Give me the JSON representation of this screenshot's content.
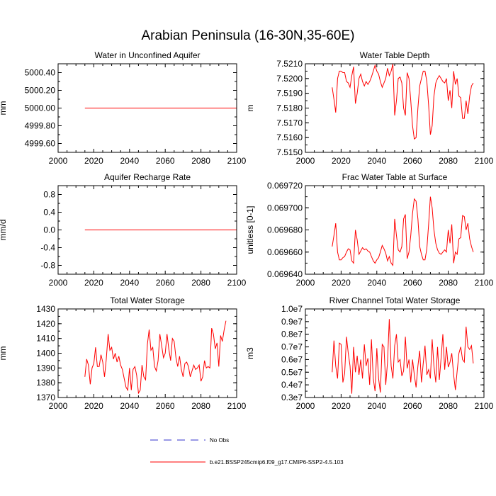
{
  "title": "Arabian Peninsula (16-30N,35-60E)",
  "colors": {
    "model": "#ff0000",
    "obs": "#3333cc",
    "axis": "#000000"
  },
  "legend": {
    "obs_label": "No Obs",
    "model_label": "b.e21.BSSP245cmip6.f09_g17.CMIP6-SSP2-4.5.103"
  },
  "chart_data": [
    {
      "type": "line",
      "title": "Water in Unconfined Aquifer",
      "ylabel": "mm",
      "xlim": [
        2000,
        2100
      ],
      "ylim": [
        4999.5,
        5000.5
      ],
      "xticks": [
        "2000",
        "2020",
        "2040",
        "2060",
        "2080",
        "2100"
      ],
      "yticks": [
        {
          "v": 4999.6,
          "label": "4999.60"
        },
        {
          "v": 4999.8,
          "label": "4999.80"
        },
        {
          "v": 5000.0,
          "label": "5000.00"
        },
        {
          "v": 5000.2,
          "label": "5000.20"
        },
        {
          "v": 5000.4,
          "label": "5000.40"
        }
      ],
      "series": [
        {
          "name": "b.e21.BSSP245cmip6.f09_g17.CMIP6-SSP2-4.5.103",
          "x": [
            2015,
            2100
          ],
          "values": [
            5000.0,
            5000.0
          ]
        }
      ]
    },
    {
      "type": "line",
      "title": "Water Table Depth",
      "ylabel": "m",
      "xlim": [
        2000,
        2100
      ],
      "ylim": [
        7.515,
        7.521
      ],
      "xticks": [
        "2000",
        "2020",
        "2040",
        "2060",
        "2080",
        "2100"
      ],
      "yticks": [
        {
          "v": 7.515,
          "label": "7.5150"
        },
        {
          "v": 7.516,
          "label": "7.5160"
        },
        {
          "v": 7.517,
          "label": "7.5170"
        },
        {
          "v": 7.518,
          "label": "7.5180"
        },
        {
          "v": 7.519,
          "label": "7.5190"
        },
        {
          "v": 7.52,
          "label": "7.5200"
        },
        {
          "v": 7.521,
          "label": "7.5210"
        }
      ],
      "series": [
        {
          "name": "b.e21.BSSP245cmip6.f09_g17.CMIP6-SSP2-4.5.103",
          "x0": 2015,
          "values": [
            7.5194,
            7.5186,
            7.5177,
            7.52,
            7.5205,
            7.5205,
            7.5204,
            7.5204,
            7.5198,
            7.5197,
            7.5194,
            7.5202,
            7.5208,
            7.5183,
            7.519,
            7.52,
            7.5203,
            7.5198,
            7.5195,
            7.5198,
            7.5196,
            7.5198,
            7.5201,
            7.5205,
            7.5209,
            7.5205,
            7.5203,
            7.5198,
            7.5194,
            7.5197,
            7.52,
            7.5207,
            7.5202,
            7.5205,
            7.521,
            7.5175,
            7.5185,
            7.52,
            7.5201,
            7.5197,
            7.518,
            7.5175,
            7.5204,
            7.52,
            7.5185,
            7.5168,
            7.5159,
            7.516,
            7.518,
            7.5195,
            7.52,
            7.5205,
            7.5205,
            7.5198,
            7.5182,
            7.5162,
            7.5168,
            7.5188,
            7.5197,
            7.52,
            7.5202,
            7.52,
            7.5198,
            7.5197,
            7.52,
            7.5185,
            7.5192,
            7.518,
            7.5205,
            7.5196,
            7.52,
            7.5188,
            7.5187,
            7.5173,
            7.5173,
            7.5185,
            7.5176,
            7.5188,
            7.5195,
            7.5197
          ]
        }
      ]
    },
    {
      "type": "line",
      "title": "Aquifer Recharge Rate",
      "ylabel": "mm/d",
      "xlim": [
        2000,
        2100
      ],
      "ylim": [
        -1.0,
        1.0
      ],
      "xticks": [
        "2000",
        "2020",
        "2040",
        "2060",
        "2080",
        "2100"
      ],
      "yticks": [
        {
          "v": -0.8,
          "label": "-0.8"
        },
        {
          "v": -0.4,
          "label": "-0.4"
        },
        {
          "v": 0.0,
          "label": "0.0"
        },
        {
          "v": 0.4,
          "label": "0.4"
        },
        {
          "v": 0.8,
          "label": "0.8"
        }
      ],
      "series": [
        {
          "name": "b.e21.BSSP245cmip6.f09_g17.CMIP6-SSP2-4.5.103",
          "x": [
            2015,
            2100
          ],
          "values": [
            0.0,
            0.0
          ]
        }
      ]
    },
    {
      "type": "line",
      "title": "Frac Water Table at Surface",
      "ylabel": "unitless [0-1]",
      "xlim": [
        2000,
        2100
      ],
      "ylim": [
        0.06964,
        0.06972
      ],
      "xticks": [
        "2000",
        "2020",
        "2040",
        "2060",
        "2080",
        "2100"
      ],
      "yticks": [
        {
          "v": 0.06964,
          "label": "0.069640"
        },
        {
          "v": 0.06966,
          "label": "0.069660"
        },
        {
          "v": 0.06968,
          "label": "0.069680"
        },
        {
          "v": 0.0697,
          "label": "0.069700"
        },
        {
          "v": 0.06972,
          "label": "0.069720"
        }
      ],
      "series": [
        {
          "name": "b.e21.BSSP245cmip6.f09_g17.CMIP6-SSP2-4.5.103",
          "x0": 2015,
          "values": [
            0.069665,
            0.069675,
            0.069686,
            0.06966,
            0.069653,
            0.069653,
            0.069655,
            0.069656,
            0.06966,
            0.069663,
            0.069662,
            0.069652,
            0.06965,
            0.06968,
            0.069671,
            0.069658,
            0.069661,
            0.069664,
            0.069662,
            0.069663,
            0.069661,
            0.06966,
            0.069656,
            0.069652,
            0.06965,
            0.069653,
            0.069655,
            0.06966,
            0.069666,
            0.069663,
            0.069659,
            0.069652,
            0.069656,
            0.06965,
            0.069648,
            0.06969,
            0.069675,
            0.069662,
            0.06966,
            0.069665,
            0.06969,
            0.069694,
            0.069654,
            0.06966,
            0.069675,
            0.069695,
            0.069708,
            0.069706,
            0.06969,
            0.069665,
            0.069658,
            0.069653,
            0.069653,
            0.069663,
            0.069685,
            0.06971,
            0.0697,
            0.06968,
            0.069668,
            0.069662,
            0.069659,
            0.069658,
            0.06966,
            0.069662,
            0.06966,
            0.06968,
            0.069668,
            0.069685,
            0.06965,
            0.06966,
            0.069658,
            0.069672,
            0.069673,
            0.069693,
            0.069692,
            0.06968,
            0.069686,
            0.069672,
            0.069665,
            0.06966
          ]
        }
      ]
    },
    {
      "type": "line",
      "title": "Total Water Storage",
      "ylabel": "mm",
      "xlim": [
        2000,
        2100
      ],
      "ylim": [
        1370,
        1430
      ],
      "xticks": [
        "2000",
        "2020",
        "2040",
        "2060",
        "2080",
        "2100"
      ],
      "yticks": [
        {
          "v": 1370,
          "label": "1370"
        },
        {
          "v": 1380,
          "label": "1380"
        },
        {
          "v": 1390,
          "label": "1390"
        },
        {
          "v": 1400,
          "label": "1400"
        },
        {
          "v": 1410,
          "label": "1410"
        },
        {
          "v": 1420,
          "label": "1420"
        },
        {
          "v": 1430,
          "label": "1430"
        }
      ],
      "series": [
        {
          "name": "b.e21.BSSP245cmip6.f09_g17.CMIP6-SSP2-4.5.103",
          "x0": 2015,
          "values": [
            1384,
            1396,
            1392,
            1379,
            1390,
            1393,
            1404,
            1391,
            1391,
            1399,
            1394,
            1384,
            1396,
            1413,
            1402,
            1404,
            1396,
            1400,
            1394,
            1398,
            1392,
            1389,
            1383,
            1377,
            1375,
            1390,
            1375,
            1389,
            1391,
            1385,
            1373,
            1375,
            1392,
            1384,
            1382,
            1406,
            1416,
            1402,
            1404,
            1391,
            1388,
            1395,
            1413,
            1405,
            1397,
            1400,
            1413,
            1403,
            1395,
            1410,
            1408,
            1397,
            1391,
            1398,
            1389,
            1384,
            1393,
            1394,
            1391,
            1384,
            1388,
            1392,
            1389,
            1390,
            1392,
            1381,
            1384,
            1395,
            1390,
            1391,
            1390,
            1417,
            1413,
            1403,
            1407,
            1391,
            1412,
            1408,
            1416,
            1422
          ]
        }
      ]
    },
    {
      "type": "line",
      "title": "River Channel Total Water Storage",
      "ylabel": "m3",
      "xlim": [
        2000,
        2100
      ],
      "ylim": [
        3000000,
        10000000
      ],
      "xticks": [
        "2000",
        "2020",
        "2040",
        "2060",
        "2080",
        "2100"
      ],
      "yticks": [
        {
          "v": 3000000,
          "label": "0.3e7"
        },
        {
          "v": 4000000,
          "label": "0.4e7"
        },
        {
          "v": 5000000,
          "label": "0.5e7"
        },
        {
          "v": 6000000,
          "label": "0.6e7"
        },
        {
          "v": 7000000,
          "label": "0.7e7"
        },
        {
          "v": 8000000,
          "label": "0.8e7"
        },
        {
          "v": 9000000,
          "label": "0.9e7"
        },
        {
          "v": 10000000,
          "label": "1.0e7"
        }
      ],
      "series": [
        {
          "name": "b.e21.BSSP245cmip6.f09_g17.CMIP6-SSP2-4.5.103",
          "x0": 2015,
          "values": [
            5000000,
            7500000,
            5500000,
            4500000,
            7300000,
            7200000,
            4200000,
            4900000,
            7800000,
            6500000,
            5500000,
            3300000,
            7000000,
            5000000,
            6300000,
            4800000,
            6000000,
            4500000,
            7200000,
            5500000,
            6100000,
            4000000,
            7600000,
            4500000,
            3500000,
            6900000,
            4500000,
            3400000,
            7200000,
            7000000,
            4000000,
            5800000,
            9200000,
            5500000,
            4500000,
            7100000,
            8000000,
            5800000,
            6000000,
            4700000,
            5100000,
            7800000,
            5300000,
            6000000,
            4200000,
            6000000,
            4800000,
            3800000,
            5500000,
            6700000,
            4200000,
            5700000,
            7100000,
            4800000,
            5200000,
            4500000,
            7600000,
            5500000,
            4200000,
            7000000,
            4400000,
            6100000,
            8000000,
            5200000,
            7000000,
            5400000,
            5800000,
            6500000,
            4800000,
            3600000,
            5100000,
            6500000,
            7000000,
            6000000,
            5800000,
            8600000,
            7000000,
            6800000,
            7100000,
            5700000
          ]
        }
      ]
    }
  ]
}
